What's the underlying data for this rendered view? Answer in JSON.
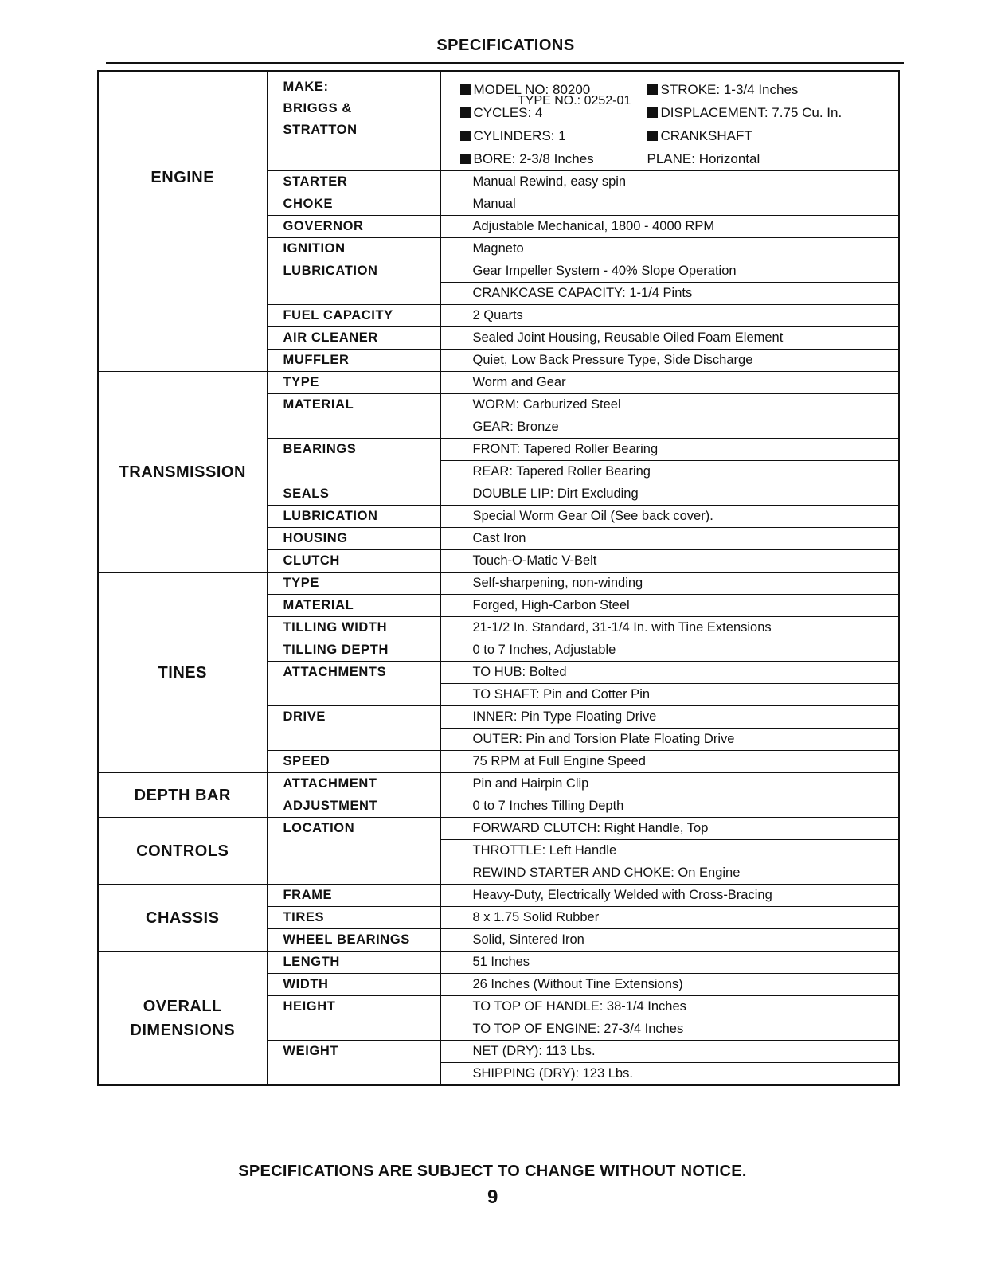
{
  "title": "SPECIFICATIONS",
  "engine_header": {
    "make_lines": [
      "MAKE:",
      "BRIGGS &",
      "STRATTON"
    ],
    "specs": [
      "MODEL NO: 80200",
      "STROKE: 1-3/4 Inches",
      "CYCLES: 4",
      "DISPLACEMENT: 7.75 Cu. In.",
      "CYLINDERS: 1",
      "CRANKSHAFT",
      "BORE: 2-3/8 Inches",
      "PLANE: Horizontal"
    ],
    "type_no": "TYPE NO.:  0252-01"
  },
  "sections": [
    {
      "name": "ENGINE",
      "items": [
        {
          "label": "STARTER",
          "values": [
            "Manual Rewind, easy spin"
          ]
        },
        {
          "label": "CHOKE",
          "values": [
            "Manual"
          ]
        },
        {
          "label": "GOVERNOR",
          "values": [
            "Adjustable Mechanical, 1800 - 4000 RPM"
          ]
        },
        {
          "label": "IGNITION",
          "values": [
            "Magneto"
          ]
        },
        {
          "label": "LUBRICATION",
          "values": [
            "Gear Impeller System - 40% Slope Operation",
            "CRANKCASE CAPACITY: 1-1/4 Pints"
          ]
        },
        {
          "label": "FUEL CAPACITY",
          "values": [
            "2 Quarts"
          ]
        },
        {
          "label": "AIR CLEANER",
          "values": [
            "Sealed Joint Housing, Reusable Oiled Foam Element"
          ]
        },
        {
          "label": "MUFFLER",
          "values": [
            "Quiet, Low Back Pressure Type, Side Discharge"
          ]
        }
      ]
    },
    {
      "name": "TRANSMISSION",
      "items": [
        {
          "label": "TYPE",
          "values": [
            "Worm and Gear"
          ]
        },
        {
          "label": "MATERIAL",
          "values": [
            "WORM: Carburized Steel",
            "GEAR: Bronze"
          ]
        },
        {
          "label": "BEARINGS",
          "values": [
            "FRONT: Tapered Roller Bearing",
            "REAR: Tapered Roller Bearing"
          ]
        },
        {
          "label": "SEALS",
          "values": [
            "DOUBLE LIP: Dirt Excluding"
          ]
        },
        {
          "label": "LUBRICATION",
          "values": [
            "Special  Worm Gear Oil  (See back cover)."
          ]
        },
        {
          "label": "HOUSING",
          "values": [
            "Cast Iron"
          ]
        },
        {
          "label": "CLUTCH",
          "values": [
            "Touch-O-Matic V-Belt"
          ]
        }
      ]
    },
    {
      "name": "TINES",
      "items": [
        {
          "label": "TYPE",
          "values": [
            "Self-sharpening, non-winding"
          ]
        },
        {
          "label": "MATERIAL",
          "values": [
            "Forged, High-Carbon Steel"
          ]
        },
        {
          "label": "TILLING WIDTH",
          "values": [
            "21-1/2 In. Standard, 31-1/4 In. with Tine Extensions"
          ]
        },
        {
          "label": "TILLING DEPTH",
          "values": [
            "0 to 7 Inches, Adjustable"
          ]
        },
        {
          "label": "ATTACHMENTS",
          "values": [
            "TO HUB: Bolted",
            "TO SHAFT: Pin and Cotter Pin"
          ]
        },
        {
          "label": "DRIVE",
          "values": [
            "INNER: Pin Type Floating Drive",
            "OUTER: Pin and Torsion Plate Floating Drive"
          ]
        },
        {
          "label": "SPEED",
          "values": [
            "75 RPM at Full Engine Speed"
          ]
        }
      ]
    },
    {
      "name": "DEPTH BAR",
      "items": [
        {
          "label": "ATTACHMENT",
          "values": [
            "Pin and Hairpin Clip"
          ]
        },
        {
          "label": "ADJUSTMENT",
          "values": [
            "0 to 7 Inches Tilling Depth"
          ]
        }
      ]
    },
    {
      "name": "CONTROLS",
      "items": [
        {
          "label": "LOCATION",
          "values": [
            "FORWARD CLUTCH: Right Handle, Top",
            "THROTTLE: Left Handle",
            "REWIND STARTER AND CHOKE: On Engine"
          ]
        }
      ]
    },
    {
      "name": "CHASSIS",
      "items": [
        {
          "label": "FRAME",
          "values": [
            "Heavy-Duty, Electrically Welded with Cross-Bracing"
          ]
        },
        {
          "label": "TIRES",
          "values": [
            "8 x 1.75 Solid Rubber"
          ]
        },
        {
          "label": "WHEEL BEARINGS",
          "values": [
            "Solid, Sintered Iron"
          ]
        }
      ]
    },
    {
      "name": "OVERALL DIMENSIONS",
      "items": [
        {
          "label": "LENGTH",
          "values": [
            "51 Inches"
          ]
        },
        {
          "label": "WIDTH",
          "values": [
            "26 Inches (Without Tine Extensions)"
          ]
        },
        {
          "label": "HEIGHT",
          "values": [
            "TO TOP OF HANDLE: 38-1/4 Inches",
            "TO TOP OF ENGINE: 27-3/4 Inches"
          ]
        },
        {
          "label": "WEIGHT",
          "values": [
            "NET (DRY): 113 Lbs.",
            "SHIPPING (DRY): 123 Lbs."
          ]
        }
      ]
    }
  ],
  "notice": "SPECIFICATIONS ARE SUBJECT TO CHANGE WITHOUT NOTICE.",
  "page_number": "9"
}
